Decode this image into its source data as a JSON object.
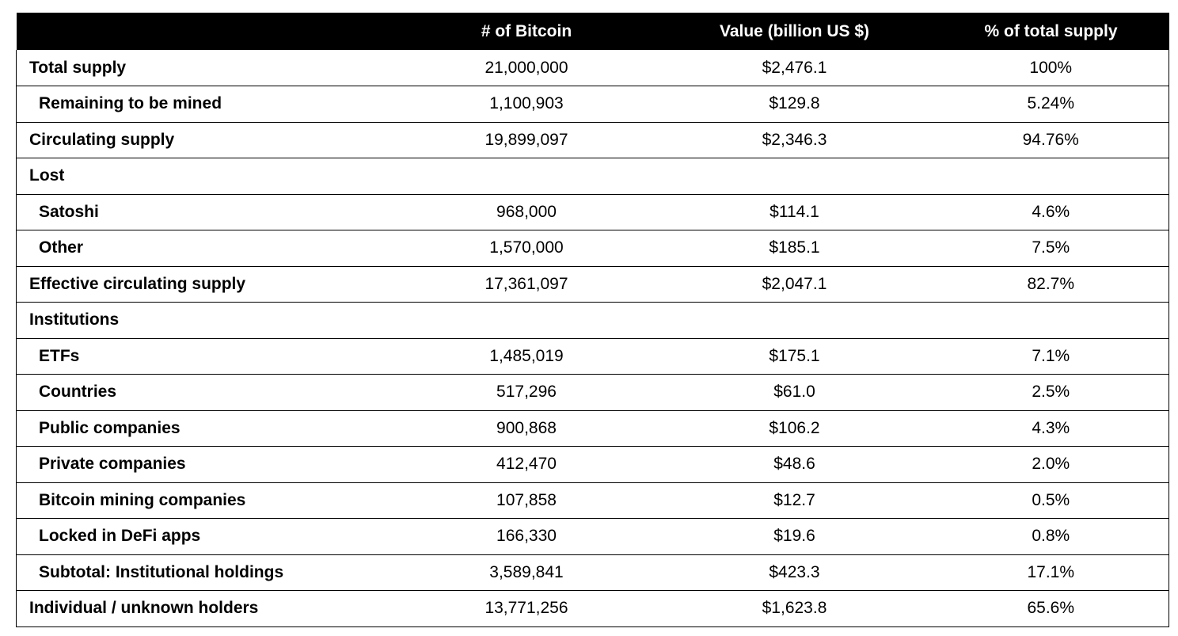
{
  "headers": [
    "",
    "# of Bitcoin",
    "Value (billion US $)",
    "% of total supply"
  ],
  "rows": [
    {
      "label": "Total supply",
      "indent": false,
      "btc": "21,000,000",
      "value": "$2,476.1",
      "pct": "100%"
    },
    {
      "label": "Remaining to be mined",
      "indent": true,
      "btc": "1,100,903",
      "value": "$129.8",
      "pct": "5.24%"
    },
    {
      "label": "Circulating supply",
      "indent": false,
      "btc": "19,899,097",
      "value": "$2,346.3",
      "pct": "94.76%"
    },
    {
      "label": "Lost",
      "indent": false,
      "btc": "",
      "value": "",
      "pct": ""
    },
    {
      "label": "Satoshi",
      "indent": true,
      "btc": "968,000",
      "value": "$114.1",
      "pct": "4.6%"
    },
    {
      "label": "Other",
      "indent": true,
      "btc": "1,570,000",
      "value": "$185.1",
      "pct": "7.5%"
    },
    {
      "label": "Effective circulating supply",
      "indent": false,
      "btc": "17,361,097",
      "value": "$2,047.1",
      "pct": "82.7%"
    },
    {
      "label": "Institutions",
      "indent": false,
      "btc": "",
      "value": "",
      "pct": ""
    },
    {
      "label": "ETFs",
      "indent": true,
      "btc": "1,485,019",
      "value": "$175.1",
      "pct": "7.1%"
    },
    {
      "label": "Countries",
      "indent": true,
      "btc": "517,296",
      "value": "$61.0",
      "pct": "2.5%"
    },
    {
      "label": "Public companies",
      "indent": true,
      "btc": "900,868",
      "value": "$106.2",
      "pct": "4.3%"
    },
    {
      "label": "Private companies",
      "indent": true,
      "btc": "412,470",
      "value": "$48.6",
      "pct": "2.0%"
    },
    {
      "label": "Bitcoin mining companies",
      "indent": true,
      "btc": "107,858",
      "value": "$12.7",
      "pct": "0.5%"
    },
    {
      "label": "Locked in DeFi apps",
      "indent": true,
      "btc": "166,330",
      "value": "$19.6",
      "pct": "0.8%"
    },
    {
      "label": "Subtotal: Institutional holdings",
      "indent": true,
      "btc": "3,589,841",
      "value": "$423.3",
      "pct": "17.1%"
    },
    {
      "label": "Individual / unknown holders",
      "indent": false,
      "btc": "13,771,256",
      "value": "$1,623.8",
      "pct": "65.6%"
    }
  ]
}
